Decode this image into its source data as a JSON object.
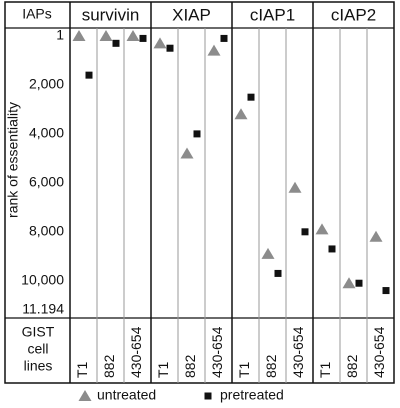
{
  "chart_data": {
    "type": "scatter",
    "header": "IAPs",
    "y_label": "rank of essentiality",
    "x_label_lines": [
      "GIST",
      "cell",
      "lines"
    ],
    "panels": [
      "survivin",
      "XIAP",
      "cIAP1",
      "cIAP2"
    ],
    "categories": [
      "T1",
      "882",
      "430-654"
    ],
    "series": [
      {
        "name": "untreated",
        "color": "#8c8c8c",
        "marker": "triangle",
        "values": [
          [
            1,
            1,
            1
          ],
          [
            300,
            4800,
            600
          ],
          [
            3200,
            8900,
            6200
          ],
          [
            7900,
            10100,
            8200
          ]
        ]
      },
      {
        "name": "pretreated",
        "color": "#111111",
        "marker": "square",
        "values": [
          [
            1600,
            300,
            100
          ],
          [
            500,
            4000,
            100
          ],
          [
            2500,
            9700,
            8000
          ],
          [
            8700,
            10100,
            10400
          ]
        ]
      }
    ],
    "ylim": [
      1,
      11194
    ],
    "y_reversed": true,
    "yticks": [
      1,
      {
        "value": 2000,
        "label": "2,000"
      },
      {
        "value": 4000,
        "label": "4,000"
      },
      {
        "value": 6000,
        "label": "6,000"
      },
      {
        "value": 8000,
        "label": "8,000"
      },
      {
        "value": 10000,
        "label": "10,000"
      },
      {
        "value": 11194,
        "label": "11.194"
      }
    ],
    "grid": false,
    "legend": "bottom"
  }
}
